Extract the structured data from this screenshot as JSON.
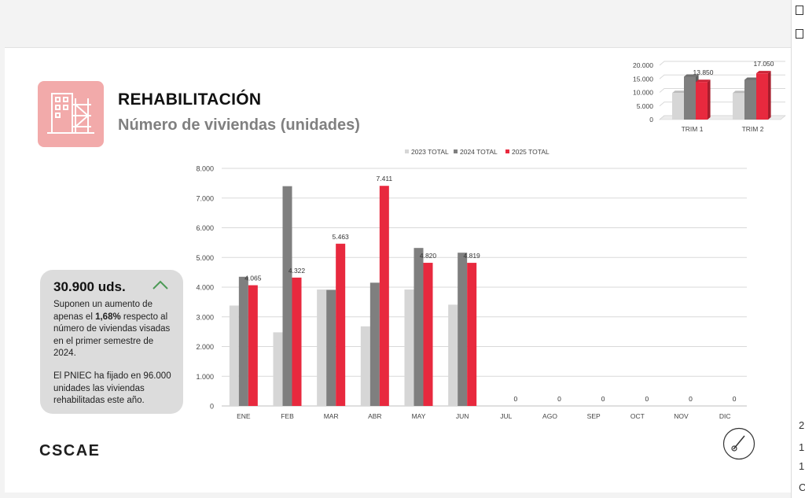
{
  "header": {
    "title": "REHABILITACIÓN",
    "subtitle": "Número de viviendas (unidades)"
  },
  "info": {
    "headline": "30.900 uds.",
    "p1_a": "Suponen un aumento de apenas el ",
    "p1_bold": "1,68%",
    "p1_b": " respecto al número de viviendas visadas en el primer semestre de 2024.",
    "p2": "El PNIEC ha fijado en 96.000 unidades las viviendas rehabilitadas este año."
  },
  "logo": "CSCAE",
  "right_panel": {
    "chars": [
      "2",
      "1",
      "1",
      "C"
    ]
  },
  "colors": {
    "s2023": "#d6d6d6",
    "s2024": "#7f7f7f",
    "s2025": "#e8293e",
    "icon_bg": "#f2aaaa",
    "arrow": "#4c9a56"
  },
  "icons": [
    "scaffold-building-icon",
    "chevron-up-icon",
    "compass-gauge-icon"
  ],
  "chart_data": [
    {
      "type": "bar",
      "categories": [
        "ENE",
        "FEB",
        "MAR",
        "ABR",
        "MAY",
        "JUN",
        "JUL",
        "AGO",
        "SEP",
        "OCT",
        "NOV",
        "DIC"
      ],
      "series": [
        {
          "name": "2023 TOTAL",
          "values": [
            3380,
            2480,
            3920,
            2680,
            3920,
            3410,
            null,
            null,
            null,
            null,
            null,
            null
          ]
        },
        {
          "name": "2024 TOTAL",
          "values": [
            4350,
            7400,
            3910,
            4150,
            5320,
            5160,
            null,
            null,
            null,
            null,
            null,
            null
          ]
        },
        {
          "name": "2025 TOTAL",
          "values": [
            4065,
            4322,
            5463,
            7411,
            4820,
            4819,
            0,
            0,
            0,
            0,
            0,
            0
          ]
        }
      ],
      "data_labels": [
        "4.065",
        "4.322",
        "5.463",
        "7.411",
        "4.820",
        "4.819",
        "0",
        "0",
        "0",
        "0",
        "0",
        "0"
      ],
      "yticks": [
        "0",
        "1.000",
        "2.000",
        "3.000",
        "4.000",
        "5.000",
        "6.000",
        "7.000",
        "8.000"
      ],
      "ylim": [
        0,
        8000
      ],
      "grid": true,
      "legend": "top"
    },
    {
      "type": "bar",
      "categories": [
        "TRIM 1",
        "TRIM 2"
      ],
      "series": [
        {
          "name": "2023 TOTAL",
          "values": [
            9780,
            9750
          ]
        },
        {
          "name": "2024 TOTAL",
          "values": [
            15800,
            14650
          ]
        },
        {
          "name": "2025 TOTAL",
          "values": [
            13850,
            17050
          ]
        }
      ],
      "data_labels": [
        "13.850",
        "17.050"
      ],
      "yticks": [
        "0",
        "5.000",
        "10.000",
        "15.000",
        "20.000"
      ],
      "ylim": [
        0,
        20000
      ],
      "grid": true,
      "legend": "none"
    }
  ]
}
